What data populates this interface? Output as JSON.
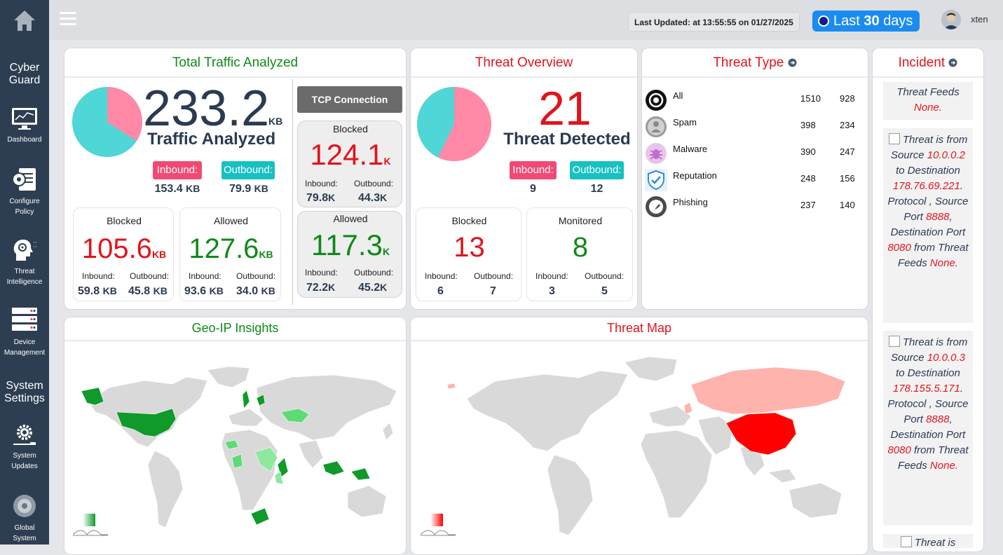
{
  "sidebar": {
    "brand": "Cyber Guard",
    "items": [
      {
        "label": "Dashboard",
        "icon": "dashboard-icon"
      },
      {
        "label": "Configure Policy",
        "icon": "configure-policy-icon"
      },
      {
        "label": "Threat Intelligence",
        "icon": "threat-intelligence-icon"
      },
      {
        "label": "Device Management",
        "icon": "device-management-icon"
      }
    ],
    "section": "System Settings",
    "settings_items": [
      {
        "label": "System Updates",
        "icon": "gear-icon"
      },
      {
        "label": "Global System",
        "icon": "global-system-icon"
      }
    ]
  },
  "header": {
    "last_updated_label": "Last Updated:",
    "last_updated_value": "at 13:55:55 on 01/27/2025",
    "range_prefix": "Last",
    "range_num": "30",
    "range_suffix": "days",
    "username": "xten"
  },
  "traffic": {
    "title": "Total Traffic Analyzed",
    "total": "233.2",
    "total_unit": "KB",
    "total_label": "Traffic Analyzed",
    "inbound_label": "Inbound:",
    "outbound_label": "Outbound:",
    "inbound": "153.4",
    "inbound_unit": "KB",
    "outbound": "79.9",
    "outbound_unit": "KB",
    "pie": {
      "inbound_fraction": 0.658,
      "outbound_fraction": 0.342
    },
    "blocked": {
      "label": "Blocked",
      "value": "105.6",
      "unit": "KB",
      "in_label": "Inbound:",
      "out_label": "Outbound:",
      "in": "59.8",
      "in_unit": "KB",
      "out": "45.8",
      "out_unit": "KB"
    },
    "allowed": {
      "label": "Allowed",
      "value": "127.6",
      "unit": "KB",
      "in_label": "Inbound:",
      "out_label": "Outbound:",
      "in": "93.6",
      "in_unit": "KB",
      "out": "34.0",
      "out_unit": "KB"
    },
    "tcp": {
      "button": "TCP Connection",
      "blocked": {
        "label": "Blocked",
        "value": "124.1",
        "unit": "K",
        "in_label": "Inbound:",
        "out_label": "Outbound:",
        "in": "79.8",
        "in_unit": "K",
        "out": "44.3",
        "out_unit": "K"
      },
      "allowed": {
        "label": "Allowed",
        "value": "117.3",
        "unit": "K",
        "in_label": "Inbound:",
        "out_label": "Outbound:",
        "in": "72.2",
        "in_unit": "K",
        "out": "45.2",
        "out_unit": "K"
      }
    }
  },
  "threat_overview": {
    "title": "Threat Overview",
    "count": "21",
    "label": "Threat Detected",
    "inbound_label": "Inbound:",
    "outbound_label": "Outbound:",
    "inbound": "9",
    "outbound": "12",
    "pie": {
      "inbound_fraction": 0.4286,
      "outbound_fraction": 0.5714
    },
    "blocked": {
      "label": "Blocked",
      "value": "13",
      "in_label": "Inbound:",
      "out_label": "Outbound:",
      "in": "6",
      "out": "7"
    },
    "monitored": {
      "label": "Monitored",
      "value": "8",
      "in_label": "Inbound:",
      "out_label": "Outbound:",
      "in": "3",
      "out": "5"
    }
  },
  "threat_type": {
    "title": "Threat Type",
    "rows": [
      {
        "name": "All",
        "a": "1510",
        "b": "928",
        "icon": "all-threats-icon"
      },
      {
        "name": "Spam",
        "a": "398",
        "b": "234",
        "icon": "spam-icon"
      },
      {
        "name": "Malware",
        "a": "390",
        "b": "247",
        "icon": "malware-icon"
      },
      {
        "name": "Reputation",
        "a": "248",
        "b": "156",
        "icon": "reputation-shield-icon"
      },
      {
        "name": "Phishing",
        "a": "237",
        "b": "140",
        "icon": "phishing-icon"
      }
    ]
  },
  "incident": {
    "title": "Incident",
    "top_fragment": {
      "t1": "Threat Feeds",
      "t2": "None."
    },
    "items": [
      {
        "p1": "Threat is from Source",
        "src": "10.0.0.2",
        "p2": "to Destination",
        "dst": "178.76.69.221",
        "p3": ". Protocol , Source Port",
        "sport": "8888",
        "p4": ", Destination Port",
        "dport": "8080",
        "p5": "from Threat Feeds",
        "feed": "None."
      },
      {
        "p1": "Threat is from Source",
        "src": "10.0.0.3",
        "p2": "to Destination",
        "dst": "178.155.5.171",
        "p3": ". Protocol , Source Port",
        "sport": "8888",
        "p4": ", Destination Port",
        "dport": "8080",
        "p5": "from Threat Feeds",
        "feed": "None."
      }
    ],
    "bottom_fragment": "Threat is"
  },
  "geo": {
    "title": "Geo-IP Insights",
    "accent": "#0f9a2a"
  },
  "threat_map": {
    "title": "Threat Map",
    "accent": "#ff0000"
  },
  "colors": {
    "inbound": "#f04a74",
    "outbound": "#17c1c2",
    "pie_in": "#ff89a6",
    "pie_out": "#4fd6d6",
    "sidebar": "#2d3e52",
    "range": "#1a8cf0"
  }
}
